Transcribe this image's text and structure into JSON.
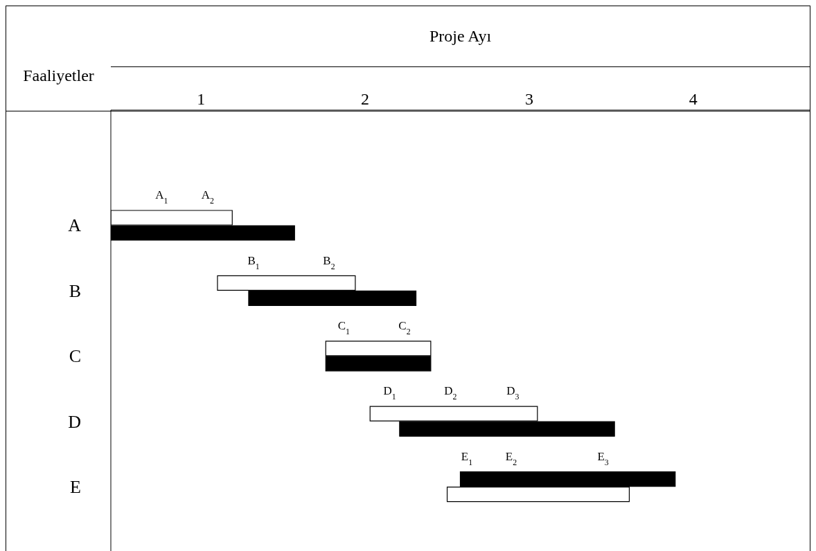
{
  "chart_data": {
    "type": "bar",
    "orientation": "horizontal",
    "xlabel": "Proje Ayı",
    "ylabel": "Faaliyetler",
    "categories": [
      "A",
      "B",
      "C",
      "D",
      "E"
    ],
    "series": [
      {
        "base": [
          0.45,
          1.1,
          1.76,
          2.03,
          2.58
        ],
        "values": [
          0.74,
          0.84,
          0.64,
          1.02,
          1.31
        ],
        "colors": [
          "#ffffff",
          "#ffffff",
          "#ffffff",
          "#ffffff",
          "#000000"
        ]
      },
      {
        "base": [
          0.45,
          1.29,
          1.76,
          2.21,
          2.5
        ],
        "values": [
          1.12,
          1.02,
          0.64,
          1.31,
          1.11
        ],
        "colors": [
          "#000000",
          "#000000",
          "#000000",
          "#000000",
          "#ffffff"
        ]
      }
    ],
    "xlim": [
      0.45,
      4.71
    ],
    "xticks": [
      1,
      2,
      3,
      4
    ],
    "grid": false,
    "legend": false,
    "annotations": [
      {
        "text": "A$_{1}$",
        "x": 0.76,
        "y": "A"
      },
      {
        "text": "A$_{2}$",
        "x": 1.04,
        "y": "A"
      },
      {
        "text": "B$_{1}$",
        "x": 1.32,
        "y": "B"
      },
      {
        "text": "B$_{2}$",
        "x": 1.78,
        "y": "B"
      },
      {
        "text": "C$_{1}$",
        "x": 1.87,
        "y": "C"
      },
      {
        "text": "C$_{2}$",
        "x": 2.24,
        "y": "C"
      },
      {
        "text": "D$_{1}$",
        "x": 2.15,
        "y": "D"
      },
      {
        "text": "D$_{2}$",
        "x": 2.52,
        "y": "D"
      },
      {
        "text": "D$_{3}$",
        "x": 2.9,
        "y": "D"
      },
      {
        "text": "E$_{1}$",
        "x": 2.62,
        "y": "E"
      },
      {
        "text": "E$_{2}$",
        "x": 2.89,
        "y": "E"
      },
      {
        "text": "E$_{3}$",
        "x": 3.45,
        "y": "E"
      }
    ]
  }
}
